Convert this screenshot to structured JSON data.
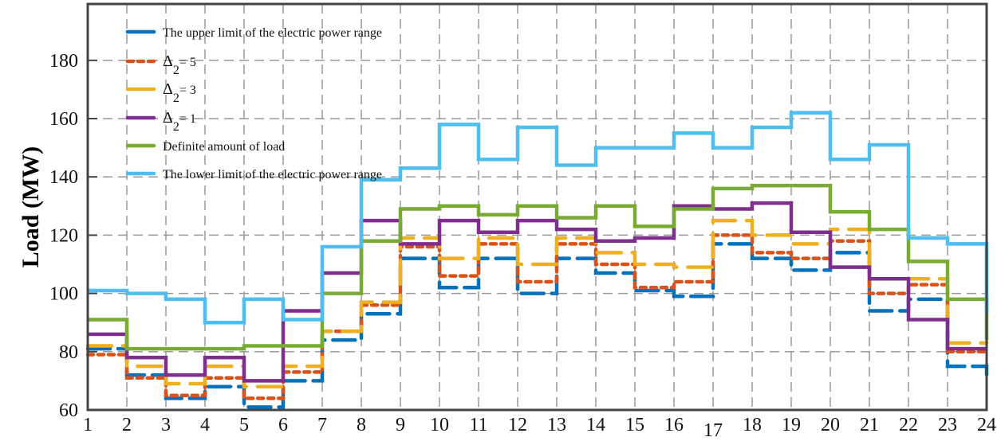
{
  "chart_data": {
    "type": "line",
    "step": true,
    "title": "",
    "xlabel": "",
    "ylabel": "Load (MW)",
    "x": [
      1,
      2,
      3,
      4,
      5,
      6,
      7,
      8,
      9,
      10,
      11,
      12,
      13,
      14,
      15,
      16,
      17,
      18,
      19,
      20,
      21,
      22,
      23,
      24
    ],
    "xlim": [
      1,
      24
    ],
    "ylim": [
      60,
      200
    ],
    "yticks": [
      60,
      80,
      100,
      120,
      140,
      160,
      180
    ],
    "grid": true,
    "legend_position": "upper left",
    "series": [
      {
        "name": "The upper limit of the electric power range",
        "color": "#0072BD",
        "style": "dashed-long",
        "values": [
          81,
          72,
          64,
          68,
          61,
          70,
          84,
          93,
          112,
          102,
          112,
          100,
          112,
          107,
          101,
          99,
          117,
          112,
          108,
          114,
          94,
          98,
          75,
          72
        ]
      },
      {
        "name": "Δ2= 5",
        "color": "#D95319",
        "style": "dotted",
        "values": [
          79,
          71,
          65,
          71,
          64,
          73,
          87,
          96,
          116,
          106,
          117,
          104,
          117,
          110,
          102,
          104,
          120,
          114,
          112,
          118,
          100,
          103,
          80,
          80
        ]
      },
      {
        "name": "Δ2= 3",
        "color": "#EDB120",
        "style": "dashed",
        "values": [
          82,
          75,
          69,
          75,
          68,
          75,
          87,
          97,
          119,
          112,
          119,
          110,
          119,
          114,
          110,
          109,
          125,
          120,
          117,
          122,
          105,
          105,
          83,
          83
        ]
      },
      {
        "name": "Δ2= 1",
        "color": "#7E2F8E",
        "style": "solid",
        "values": [
          86,
          78,
          72,
          78,
          70,
          94,
          107,
          125,
          117,
          125,
          121,
          125,
          122,
          118,
          119,
          130,
          129,
          131,
          121,
          109,
          105,
          91,
          81,
          81
        ]
      },
      {
        "name": "Definite amount of load",
        "color": "#77AC30",
        "style": "solid",
        "values": [
          91,
          81,
          81,
          81,
          82,
          82,
          100,
          118,
          129,
          130,
          127,
          130,
          126,
          130,
          123,
          129,
          136,
          137,
          137,
          128,
          122,
          111,
          98,
          84
        ]
      },
      {
        "name": "The lower limit of the electric power range",
        "color": "#4DBEEE",
        "style": "solid",
        "values": [
          101,
          100,
          98,
          90,
          98,
          91,
          116,
          139,
          143,
          158,
          146,
          157,
          144,
          150,
          150,
          155,
          150,
          157,
          162,
          146,
          151,
          119,
          117,
          93
        ]
      }
    ]
  },
  "legend": {
    "items": [
      {
        "label": "The upper limit of the electric power range"
      },
      {
        "label": "Δ",
        "sub": "2",
        "suffix": "= 5"
      },
      {
        "label": "Δ",
        "sub": "2",
        "suffix": "= 3"
      },
      {
        "label": "Δ",
        "sub": "2",
        "suffix": "= 1"
      },
      {
        "label": "Definite amount of load"
      },
      {
        "label": "The lower limit of the electric power range"
      }
    ]
  }
}
